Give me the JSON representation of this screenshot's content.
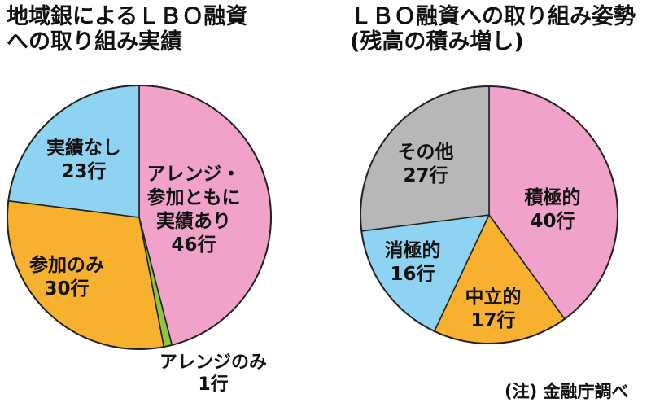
{
  "notes": {
    "source": "(注) 金融庁調べ"
  },
  "chart_data": [
    {
      "type": "pie",
      "title": [
        "地域銀によるＬＢＯ融資",
        "への取り組み実績"
      ],
      "unit": "行",
      "slices": [
        {
          "label": [
            "アレンジ・",
            "参加ともに",
            "実績あり"
          ],
          "value": 46,
          "value_label": "46行",
          "color": "#f1a2cb"
        },
        {
          "label": [
            "アレンジのみ"
          ],
          "value": 1,
          "value_label": "1行",
          "color": "#8dc63f"
        },
        {
          "label": [
            "参加のみ"
          ],
          "value": 30,
          "value_label": "30行",
          "color": "#f7b12e"
        },
        {
          "label": [
            "実績なし"
          ],
          "value": 23,
          "value_label": "23行",
          "color": "#8fd3f3"
        }
      ]
    },
    {
      "type": "pie",
      "title": [
        "ＬＢＯ融資への取り組み姿勢",
        "(残高の積み増し)"
      ],
      "unit": "行",
      "slices": [
        {
          "label": [
            "積極的"
          ],
          "value": 40,
          "value_label": "40行",
          "color": "#f1a2cb"
        },
        {
          "label": [
            "中立的"
          ],
          "value": 17,
          "value_label": "17行",
          "color": "#f7b12e"
        },
        {
          "label": [
            "消極的"
          ],
          "value": 16,
          "value_label": "16行",
          "color": "#8fd3f3"
        },
        {
          "label": [
            "その他"
          ],
          "value": 27,
          "value_label": "27行",
          "color": "#b7b7b7"
        }
      ]
    }
  ]
}
